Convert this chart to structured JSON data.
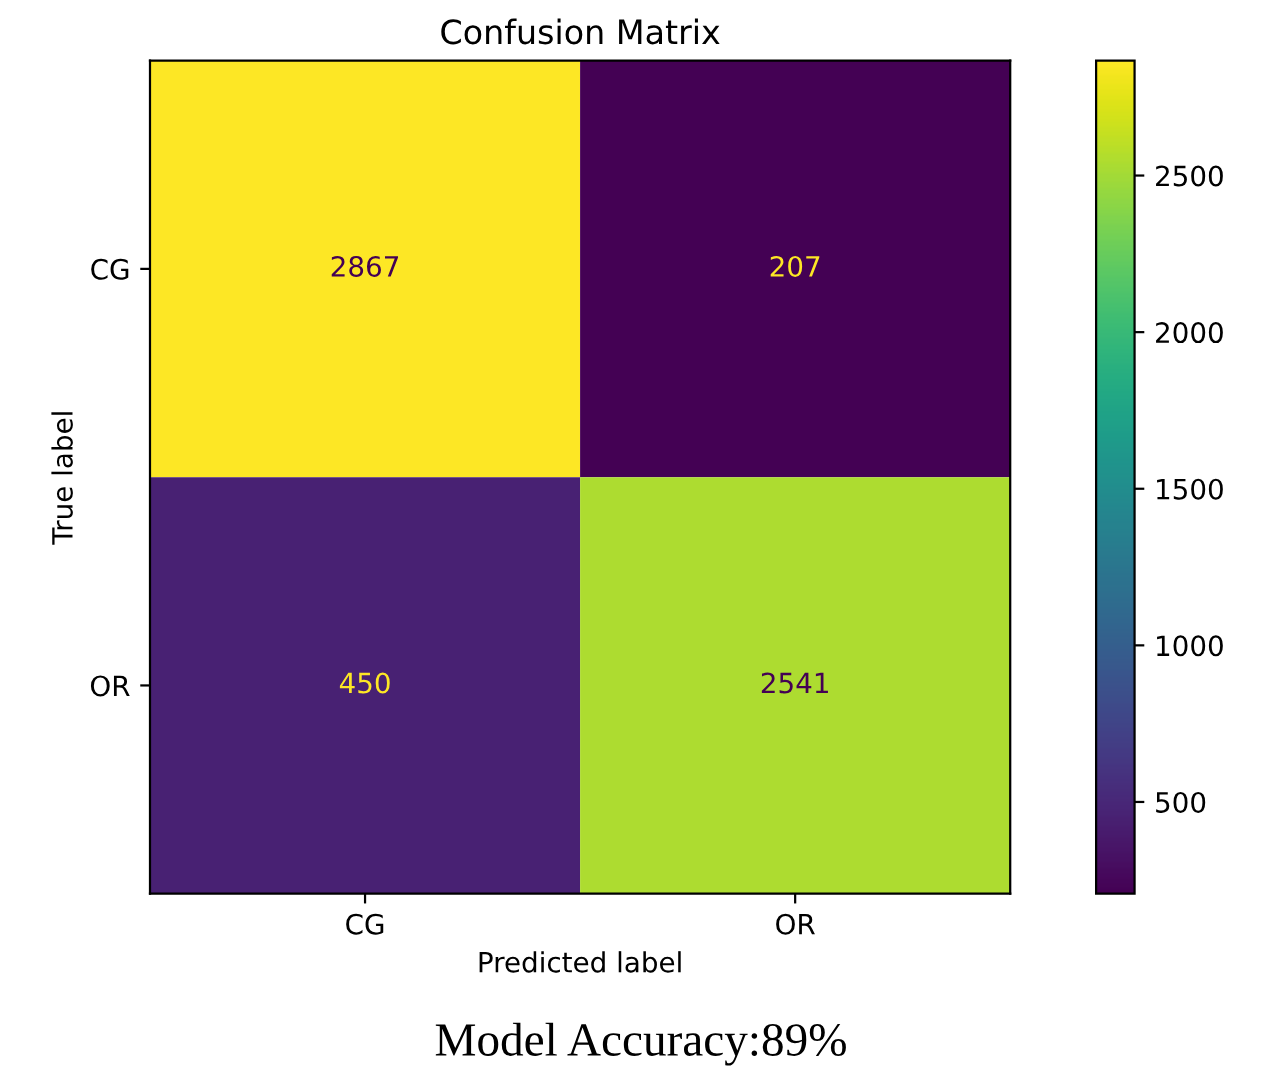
{
  "chart_data": {
    "type": "heatmap",
    "title": "Confusion Matrix",
    "xlabel": "Predicted label",
    "ylabel": "True label",
    "categories": [
      "CG",
      "OR"
    ],
    "y_categories": [
      "CG",
      "OR"
    ],
    "cells": [
      [
        2867,
        207
      ],
      [
        450,
        2541
      ]
    ],
    "data_labels": true,
    "clim": [
      207,
      2867
    ],
    "cticks": [
      500,
      1000,
      1500,
      2000,
      2500
    ],
    "annotations": [
      "Model Accuracy:89%"
    ]
  }
}
